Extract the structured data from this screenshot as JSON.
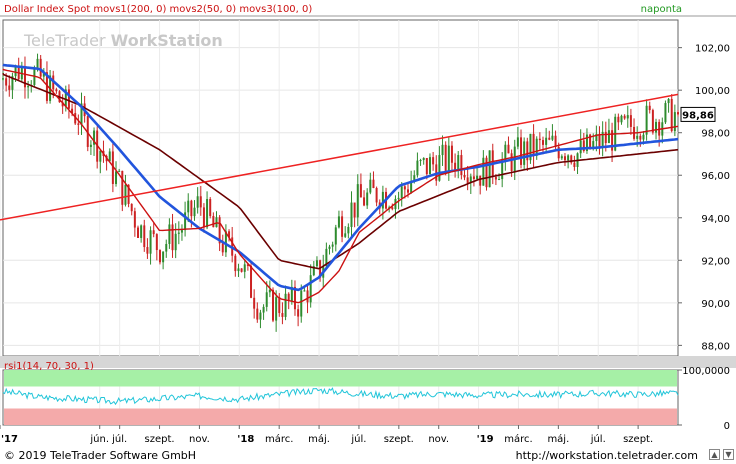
{
  "header": {
    "main_legend": "Dollar Index Spot  movs1(200, 0)  movs2(50, 0)  movs3(100, 0)",
    "period": "naponta",
    "rsi_legend": "rsi1(14, 70, 30, 1)",
    "watermark_a": "TeleTrader ",
    "watermark_b": "WorkStation"
  },
  "footer": {
    "copyright": "© 2019 TeleTrader Software GmbH",
    "url": "http://workstation.teletrader.com"
  },
  "colors": {
    "candle_up": "#2e8b2e",
    "candle_down": "#cc2222",
    "ma200": "#6b0000",
    "ma50": "#2255dd",
    "ma100": "#cc1111",
    "trendline": "#ee2222",
    "rsi_line": "#22c5d9",
    "rsi_overbought": "#a6f0a6",
    "rsi_oversold": "#f4aaaa",
    "last_box": "#ffffff"
  },
  "chart_data": [
    {
      "type": "candlestick",
      "title": "Dollar Index Spot",
      "period": "naponta",
      "x_tick_labels": [
        "'17",
        "jún.",
        "júl.",
        "szept.",
        "nov.",
        "'18",
        "márc.",
        "máj.",
        "júl.",
        "szept.",
        "nov.",
        "'19",
        "márc.",
        "máj.",
        "júl.",
        "szept."
      ],
      "x_tick_months": [
        0,
        5,
        6,
        8,
        10,
        12,
        14,
        16,
        18,
        20,
        22,
        24,
        26,
        28,
        30,
        32
      ],
      "y_tick_labels": [
        "102,00",
        "100,00",
        "98,00",
        "96,00",
        "94,00",
        "92,00",
        "90,00",
        "88,00"
      ],
      "y_tick_values": [
        102,
        100,
        98,
        96,
        94,
        92,
        90,
        88
      ],
      "ylim": [
        87.5,
        103.3
      ],
      "last_value_label": "98,86",
      "last_value": 98.86,
      "price_path": {
        "months": [
          0,
          1,
          2,
          3,
          4,
          5,
          6,
          7,
          8,
          9,
          10,
          11,
          12,
          13,
          14,
          15,
          16,
          17,
          18,
          19,
          20,
          21,
          22,
          23,
          24,
          25,
          26,
          27,
          28,
          29,
          30,
          31,
          32,
          33,
          34
        ],
        "close": [
          100.5,
          101.0,
          100.6,
          99.5,
          98.7,
          97.3,
          95.6,
          93.5,
          92.6,
          93.4,
          94.7,
          93.0,
          92.0,
          89.8,
          89.9,
          90.0,
          91.5,
          93.8,
          94.8,
          95.2,
          95.0,
          96.3,
          96.6,
          96.8,
          96.1,
          96.5,
          97.0,
          97.3,
          97.4,
          97.0,
          97.5,
          98.0,
          98.5,
          98.7,
          98.86
        ]
      },
      "series": [
        {
          "name": "movs1(200, 0)",
          "months": [
            0,
            4,
            8,
            12,
            14,
            16,
            18,
            20,
            24,
            28,
            32,
            34
          ],
          "values": [
            100.8,
            99.3,
            97.2,
            94.5,
            92.0,
            91.6,
            92.8,
            94.3,
            95.8,
            96.6,
            97.0,
            97.2
          ]
        },
        {
          "name": "movs2(50, 0)",
          "months": [
            0,
            2,
            4,
            6,
            8,
            10,
            12,
            14,
            15,
            16,
            18,
            20,
            22,
            24,
            26,
            28,
            30,
            32,
            34
          ],
          "values": [
            101.2,
            101.0,
            99.3,
            97.2,
            95.0,
            93.5,
            92.4,
            90.8,
            90.6,
            91.2,
            93.5,
            95.5,
            96.1,
            96.4,
            96.8,
            97.2,
            97.3,
            97.5,
            97.7
          ]
        },
        {
          "name": "movs3(100, 0)",
          "months": [
            0,
            2,
            4,
            6,
            8,
            10,
            11,
            12,
            14,
            15,
            16,
            17,
            18,
            20,
            22,
            24,
            26,
            28,
            30,
            32,
            34
          ],
          "values": [
            101.0,
            100.6,
            98.5,
            96.0,
            93.4,
            93.5,
            93.8,
            92.3,
            90.2,
            90.0,
            90.5,
            91.5,
            93.3,
            94.8,
            96.0,
            96.5,
            96.9,
            97.4,
            97.9,
            98.0,
            98.3
          ]
        },
        {
          "name": "trendline",
          "months": [
            0,
            34
          ],
          "values": [
            93.9,
            99.8
          ]
        }
      ]
    },
    {
      "type": "line",
      "title": "rsi1(14, 70, 30, 1)",
      "y_tick_labels": [
        "100,0000",
        "0"
      ],
      "y_tick_values": [
        100,
        0
      ],
      "overbought": 70,
      "oversold": 30,
      "series": [
        {
          "name": "rsi1(14, 70, 30, 1)",
          "months": [
            0,
            2,
            4,
            6,
            8,
            10,
            12,
            14,
            16,
            18,
            20,
            22,
            24,
            26,
            28,
            30,
            32,
            34
          ],
          "values": [
            62,
            51,
            47,
            43,
            48,
            53,
            47,
            56,
            64,
            57,
            53,
            57,
            54,
            56,
            55,
            58,
            56,
            58
          ]
        }
      ]
    }
  ]
}
